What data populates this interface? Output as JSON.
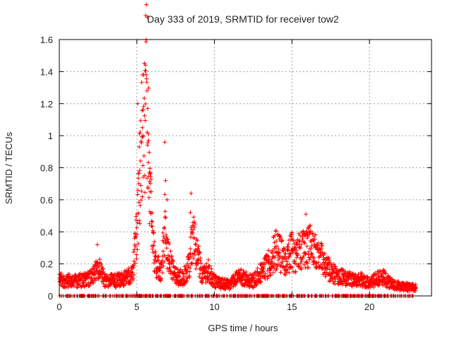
{
  "chart_data": {
    "type": "scatter",
    "title": "Day 333 of 2019, SRMTID for receiver tow2",
    "xlabel": "GPS time / hours",
    "ylabel": "SRMTID / TECUs",
    "xlim": [
      0,
      24
    ],
    "ylim": [
      0,
      1.6
    ],
    "x_ticks": [
      0,
      5,
      10,
      15,
      20
    ],
    "y_ticks": [
      0,
      0.2,
      0.4,
      0.6,
      0.8,
      1,
      1.2,
      1.4,
      1.6
    ],
    "x_tick_labels": [
      "0",
      "5",
      "10",
      "15",
      "20"
    ],
    "y_tick_labels": [
      "0",
      "0.2",
      "0.4",
      "0.6",
      "0.8",
      "1",
      "1.2",
      "1.4",
      "1.6"
    ],
    "grid": true,
    "marker": "plus",
    "color": "#ff0000",
    "x_end": 23.0,
    "series_envelope": {
      "x": [
        0,
        1,
        2,
        2.3,
        2.5,
        3,
        4,
        4.7,
        4.9,
        5.1,
        5.3,
        5.5,
        5.6,
        5.7,
        5.8,
        6.0,
        6.3,
        6.6,
        6.8,
        7.0,
        7.5,
        8.0,
        8.4,
        8.6,
        8.8,
        9.2,
        9.6,
        9.9,
        10.3,
        11.0,
        11.5,
        12.5,
        13.5,
        14.0,
        14.5,
        15.0,
        15.3,
        15.6,
        15.9,
        16.2,
        16.6,
        17.0,
        17.5,
        18.0,
        18.5,
        19.0,
        19.5,
        20.0,
        20.8,
        21.5,
        22.0,
        22.5,
        23.0
      ],
      "y": [
        0.1,
        0.09,
        0.11,
        0.14,
        0.18,
        0.09,
        0.1,
        0.13,
        0.3,
        0.6,
        0.95,
        1.1,
        1.38,
        1.2,
        0.75,
        0.35,
        0.18,
        0.15,
        0.45,
        0.25,
        0.12,
        0.11,
        0.2,
        0.38,
        0.3,
        0.12,
        0.16,
        0.1,
        0.08,
        0.07,
        0.12,
        0.09,
        0.2,
        0.3,
        0.22,
        0.28,
        0.24,
        0.3,
        0.28,
        0.32,
        0.25,
        0.22,
        0.15,
        0.12,
        0.11,
        0.1,
        0.1,
        0.08,
        0.12,
        0.07,
        0.06,
        0.055,
        0.05
      ]
    },
    "spikes": [
      {
        "x": 2.45,
        "y": 0.32
      },
      {
        "x": 5.05,
        "y": 1.2
      },
      {
        "x": 5.15,
        "y": 0.93
      },
      {
        "x": 5.35,
        "y": 1.05
      },
      {
        "x": 5.55,
        "y": 1.44
      },
      {
        "x": 5.6,
        "y": 1.38
      },
      {
        "x": 5.65,
        "y": 1.28
      },
      {
        "x": 5.7,
        "y": 1.17
      },
      {
        "x": 5.75,
        "y": 0.97
      },
      {
        "x": 5.8,
        "y": 0.77
      },
      {
        "x": 5.85,
        "y": 0.65
      },
      {
        "x": 6.8,
        "y": 0.96
      },
      {
        "x": 6.85,
        "y": 0.72
      },
      {
        "x": 6.95,
        "y": 0.6
      },
      {
        "x": 8.5,
        "y": 0.64
      },
      {
        "x": 8.45,
        "y": 0.52
      },
      {
        "x": 15.9,
        "y": 0.51
      },
      {
        "x": 16.05,
        "y": 0.42
      }
    ]
  }
}
